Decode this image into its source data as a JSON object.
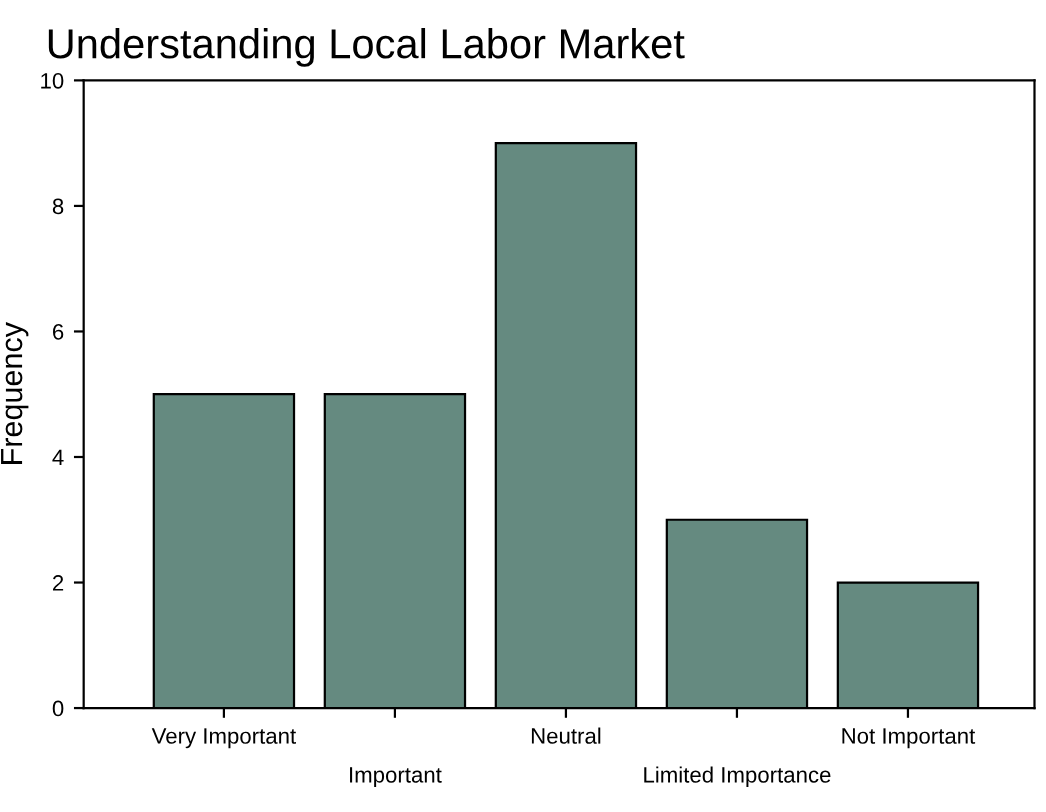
{
  "chart_data": {
    "type": "bar",
    "title": "Understanding Local Labor Market",
    "ylabel": "Frequency",
    "categories": [
      "Very Important",
      "Important",
      "Neutral",
      "Limited Importance",
      "Not Important"
    ],
    "values": [
      5,
      5,
      9,
      3,
      2
    ],
    "color": "#658a80",
    "ylim": [
      0,
      10
    ],
    "yticks": [
      0,
      2,
      4,
      6,
      8,
      10
    ],
    "grid": false,
    "legend": false
  }
}
